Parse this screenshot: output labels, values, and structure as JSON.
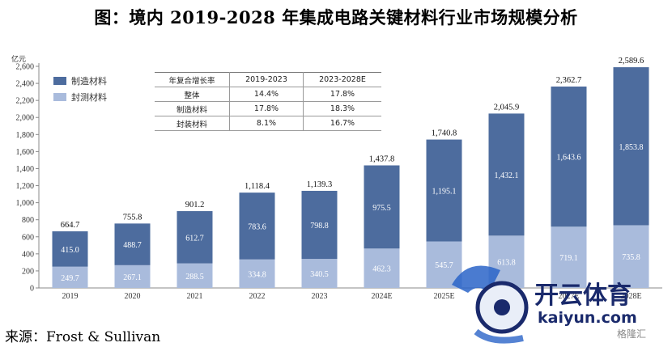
{
  "title": "图：境内 2019-2028 年集成电路关键材料行业市场规模分析",
  "source": "来源：Frost & Sullivan",
  "chart_data": {
    "type": "bar",
    "stacked": true,
    "title": "图：境内 2019-2028 年集成电路关键材料行业市场规模分析",
    "unit": "亿元",
    "categories": [
      "2019",
      "2020",
      "2021",
      "2022",
      "2023",
      "2024E",
      "2025E",
      "2026E",
      "2027E",
      "2028E"
    ],
    "series": [
      {
        "name": "封测材料",
        "color": "#a9bbdc",
        "values": [
          249.7,
          267.1,
          288.5,
          334.8,
          340.5,
          462.3,
          545.7,
          613.8,
          719.1,
          735.8
        ]
      },
      {
        "name": "制造材料",
        "color": "#4d6c9e",
        "values": [
          415.0,
          488.7,
          612.7,
          783.6,
          798.8,
          975.5,
          1195.1,
          1432.1,
          1643.6,
          1853.8
        ]
      }
    ],
    "totals": [
      664.7,
      755.8,
      901.2,
      1118.4,
      1139.3,
      1437.8,
      1740.8,
      2045.9,
      2362.7,
      2589.6
    ],
    "value_labels": {
      "封测材料": [
        "249.7",
        "267.1",
        "288.5",
        "334.8",
        "340.5",
        "462.3",
        "545.7",
        "613.8",
        "719.1",
        "735.8"
      ],
      "制造材料": [
        "415.0",
        "488.7",
        "612.7",
        "783.6",
        "798.8",
        "975.5",
        "1,195.1",
        "1,432.1",
        "1,643.6",
        "1,853.8"
      ],
      "total": [
        "664.7",
        "755.8",
        "901.2",
        "1,118.4",
        "1,139.3",
        "1,437.8",
        "1,740.8",
        "2,045.9",
        "2,362.7",
        "2,589.6"
      ]
    },
    "ylim": [
      0,
      2600
    ],
    "yticks": [
      0,
      200,
      400,
      600,
      800,
      1000,
      1200,
      1400,
      1600,
      1800,
      2000,
      2200,
      2400,
      2600
    ],
    "ytick_labels": [
      "0",
      "200",
      "400",
      "600",
      "800",
      "1,000",
      "1,200",
      "1,400",
      "1,600",
      "1,800",
      "2,000",
      "2,200",
      "2,400",
      "2,600"
    ],
    "legend": [
      {
        "label": "制造材料",
        "color": "#4d6c9e"
      },
      {
        "label": "封测材料",
        "color": "#a9bbdc"
      }
    ],
    "legend_position": "top-left",
    "cagr_table": {
      "headers": [
        "年复合增长率",
        "2019-2023",
        "2023-2028E"
      ],
      "rows": [
        [
          "整体",
          "14.4%",
          "17.8%"
        ],
        [
          "制造材料",
          "17.8%",
          "18.3%"
        ],
        [
          "封装材料",
          "8.1%",
          "16.7%"
        ]
      ]
    }
  },
  "watermark": {
    "brand": "开云体育",
    "url": "kaiyun.com",
    "small": "格隆汇"
  }
}
